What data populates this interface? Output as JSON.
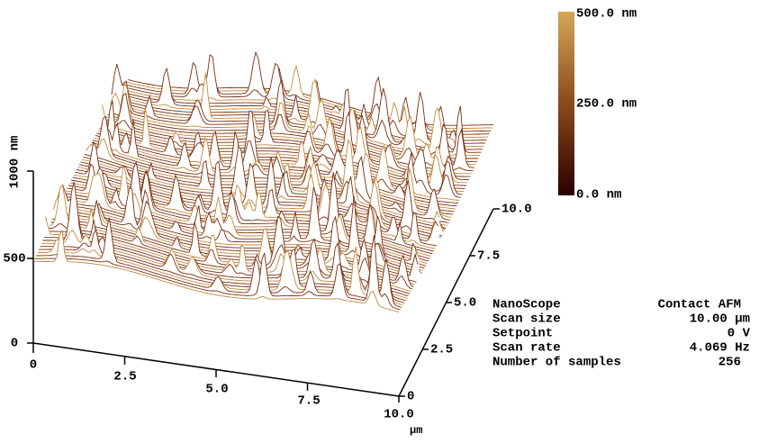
{
  "colorbar": {
    "top": "500.0 nm",
    "middle": "250.0 nm",
    "bottom": "0.0 nm"
  },
  "z_axis": {
    "label": "1000 nm",
    "ticks": [
      "500",
      "0"
    ]
  },
  "x_axis": {
    "ticks": [
      "0",
      "2.5",
      "5.0",
      "7.5",
      "10.0"
    ],
    "unit": "μm"
  },
  "y_axis": {
    "ticks": [
      "0",
      "2.5",
      "5.0",
      "7.5",
      "10.0"
    ]
  },
  "info": {
    "rows": [
      [
        "NanoScope",
        "Contact AFM"
      ],
      [
        "Scan size",
        "10.00 μm"
      ],
      [
        "Setpoint",
        "0 V"
      ],
      [
        "Scan rate",
        "4.069 Hz"
      ],
      [
        "Number of samples",
        "256"
      ]
    ]
  }
}
